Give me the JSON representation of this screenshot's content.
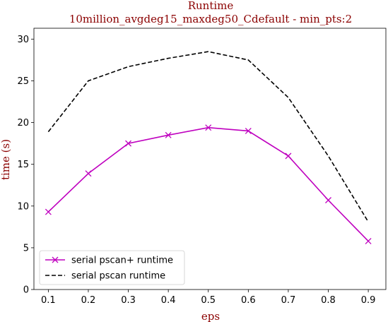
{
  "chart_data": {
    "type": "line",
    "title": "Runtime",
    "subtitle": "10million_avgdeg15_maxdeg50_Cdefault - min_pts:2",
    "xlabel": "eps",
    "ylabel": "time (s)",
    "x": [
      0.1,
      0.2,
      0.3,
      0.4,
      0.5,
      0.6,
      0.7,
      0.8,
      0.9
    ],
    "xticks": [
      "0.1",
      "0.2",
      "0.3",
      "0.4",
      "0.5",
      "0.6",
      "0.7",
      "0.8",
      "0.9"
    ],
    "yticks": [
      "0",
      "5",
      "10",
      "15",
      "20",
      "25",
      "30"
    ],
    "xlim": [
      0.064,
      0.944
    ],
    "ylim": [
      0,
      31.3
    ],
    "grid": false,
    "legend_position": "lower-left",
    "series": [
      {
        "name": "serial pscan+ runtime",
        "color": "#bf00bf",
        "line_style": "solid",
        "marker": "x",
        "values": [
          9.3,
          13.9,
          17.5,
          18.5,
          19.4,
          19.0,
          16.0,
          10.7,
          5.8
        ]
      },
      {
        "name": "serial pscan runtime",
        "color": "#000000",
        "line_style": "dashed",
        "marker": "none",
        "values": [
          18.9,
          25.0,
          26.7,
          27.7,
          28.5,
          27.5,
          23.0,
          16.0,
          8.1
        ]
      }
    ]
  }
}
